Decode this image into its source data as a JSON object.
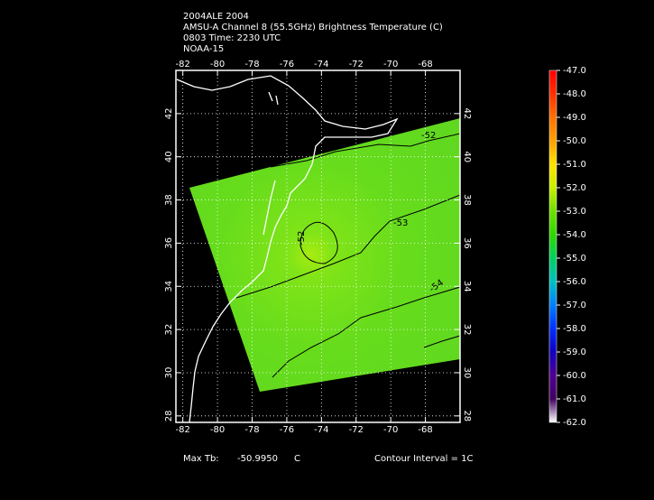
{
  "header": {
    "lines": [
      "2004ALE 2004",
      "AMSU-A Channel 8 (55.5GHz) Brightness Temperature (C)",
      "0803 Time: 2230 UTC",
      "NOAA-15"
    ]
  },
  "map": {
    "xlim": [
      -82.4,
      -66
    ],
    "ylim": [
      27.7,
      44
    ],
    "xticks": [
      -82,
      -80,
      -78,
      -76,
      -74,
      -72,
      -70,
      -68
    ],
    "yticks": [
      28,
      30,
      32,
      34,
      36,
      38,
      40,
      42
    ],
    "grid": true,
    "contour_labels": [
      -52,
      -53,
      -54,
      -52
    ]
  },
  "colorbar": {
    "ylim": [
      -62,
      -47
    ],
    "ticks": [
      -47,
      -48,
      -49,
      -50,
      -51,
      -52,
      -53,
      -54,
      -55,
      -56,
      -57,
      -58,
      -59,
      -60,
      -61,
      -62
    ],
    "tick_labels": [
      "-47.0",
      "-48.0",
      "-49.0",
      "-50.0",
      "-51.0",
      "-52.0",
      "-53.0",
      "-54.0",
      "-55.0",
      "-56.0",
      "-57.0",
      "-58.0",
      "-59.0",
      "-60.0",
      "-61.0",
      "-62.0"
    ],
    "colors": [
      "#ff0000",
      "#ff3000",
      "#ff7000",
      "#ffa000",
      "#ffe000",
      "#c8f000",
      "#70e000",
      "#30d800",
      "#00d060",
      "#00c0c0",
      "#0080ff",
      "#0030ff",
      "#1000c0",
      "#500090",
      "#400060",
      "#ffffff"
    ]
  },
  "footer": {
    "max_label": "Max Tb:",
    "max_value": "-50.9950",
    "max_unit": "C",
    "contour_interval": "Contour Interval = 1C"
  }
}
